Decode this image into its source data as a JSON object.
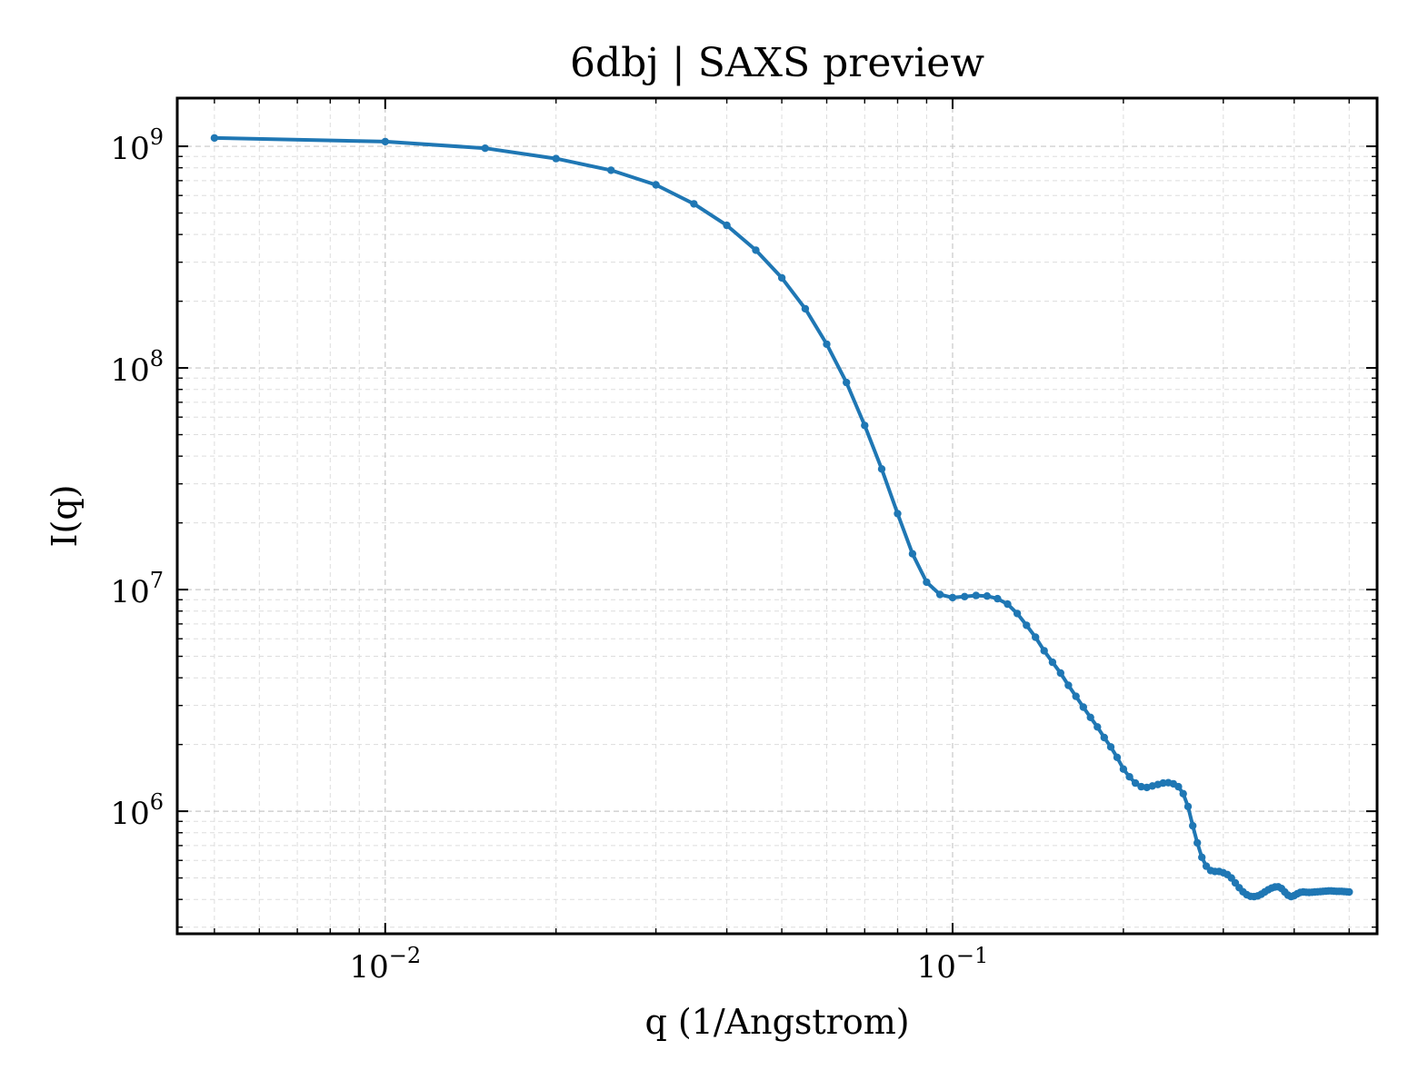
{
  "chart_data": {
    "type": "line",
    "title": "6dbj | SAXS preview",
    "xlabel": "q (1/Angstrom)",
    "ylabel": "I(q)",
    "xscale": "log",
    "yscale": "log",
    "xlim": [
      0.0043,
      0.56
    ],
    "ylim": [
      280000,
      1650000000
    ],
    "grid": true,
    "line_color": "#1f77b4",
    "x_ticks": [
      {
        "base": "10",
        "exp": "−2",
        "value": 0.01
      },
      {
        "base": "10",
        "exp": "−1",
        "value": 0.1
      }
    ],
    "y_ticks": [
      {
        "base": "10",
        "exp": "6",
        "value": 1000000
      },
      {
        "base": "10",
        "exp": "7",
        "value": 10000000
      },
      {
        "base": "10",
        "exp": "8",
        "value": 100000000
      },
      {
        "base": "10",
        "exp": "9",
        "value": 1000000000
      }
    ],
    "series": [
      {
        "x": [
          0.005,
          0.01,
          0.015,
          0.02,
          0.025,
          0.03,
          0.035,
          0.04,
          0.045,
          0.05,
          0.055,
          0.06,
          0.065,
          0.07,
          0.075,
          0.08,
          0.085,
          0.09,
          0.095,
          0.1,
          0.105,
          0.11,
          0.115,
          0.12,
          0.125,
          0.13,
          0.135,
          0.14,
          0.145,
          0.15,
          0.155,
          0.16,
          0.165,
          0.17,
          0.175,
          0.18,
          0.185,
          0.19,
          0.195,
          0.2,
          0.205,
          0.21,
          0.215,
          0.22,
          0.225,
          0.23,
          0.235,
          0.24,
          0.245,
          0.25,
          0.255,
          0.26,
          0.265,
          0.27,
          0.275,
          0.28,
          0.285,
          0.29,
          0.295,
          0.3,
          0.305,
          0.31,
          0.315,
          0.32,
          0.325,
          0.33,
          0.335,
          0.34,
          0.345,
          0.35,
          0.355,
          0.36,
          0.365,
          0.37,
          0.375,
          0.38,
          0.385,
          0.39,
          0.395,
          0.4,
          0.405,
          0.41,
          0.415,
          0.42,
          0.425,
          0.43,
          0.435,
          0.44,
          0.445,
          0.45,
          0.455,
          0.46,
          0.465,
          0.47,
          0.475,
          0.48,
          0.485,
          0.49,
          0.495,
          0.5
        ],
        "y": [
          1090000000,
          1050000000,
          980000000,
          880000000,
          780000000,
          670000000,
          550000000,
          440000000,
          340000000,
          255000000,
          185000000,
          128000000,
          86000000,
          55000000,
          35000000,
          22000000,
          14500000,
          10800000,
          9500000,
          9200000,
          9300000,
          9400000,
          9350000,
          9100000,
          8600000,
          7800000,
          6900000,
          6100000,
          5300000,
          4700000,
          4200000,
          3700000,
          3300000,
          2950000,
          2650000,
          2400000,
          2150000,
          1950000,
          1750000,
          1550000,
          1430000,
          1340000,
          1290000,
          1280000,
          1300000,
          1320000,
          1340000,
          1345000,
          1330000,
          1290000,
          1200000,
          1050000,
          860000,
          720000,
          620000,
          565000,
          540000,
          535000,
          535000,
          528000,
          518000,
          500000,
          475000,
          452000,
          433000,
          420000,
          413000,
          412000,
          415000,
          422000,
          432000,
          442000,
          450000,
          455000,
          456000,
          448000,
          432000,
          418000,
          412000,
          416000,
          424000,
          430000,
          432000,
          431000,
          430000,
          431000,
          432000,
          433000,
          434000,
          435000,
          436000,
          437000,
          437000,
          436000,
          435000,
          435000,
          435000,
          434000,
          433000,
          432000
        ]
      }
    ]
  }
}
